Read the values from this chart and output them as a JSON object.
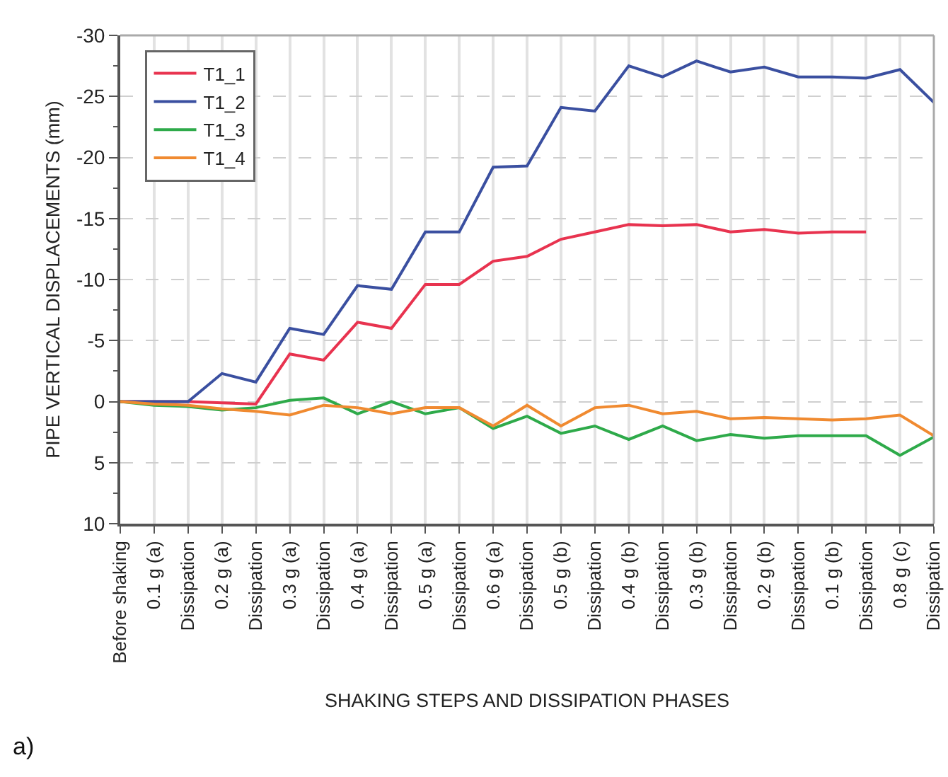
{
  "chart_data": {
    "type": "line",
    "xlabel": "SHAKING STEPS AND DISSIPATION PHASES",
    "ylabel": "PIPE VERTICAL DISPLACEMENTS (mm)",
    "categories": [
      "Before shaking",
      "0.1 g (a)",
      "Dissipation",
      "0.2 g (a)",
      "Dissipation",
      "0.3 g (a)",
      "Dissipation",
      "0.4 g (a)",
      "Dissipation",
      "0.5 g (a)",
      "Dissipation",
      "0.6 g (a)",
      "Dissipation",
      "0.5 g (b)",
      "Dissipation",
      "0.4 g (b)",
      "Dissipation",
      "0.3 g (b)",
      "Dissipation",
      "0.2 g (b)",
      "Dissipation",
      "0.1 g (b)",
      "Dissipation",
      "0.8 g (c)",
      "Dissipation"
    ],
    "series": [
      {
        "name": "T1_1",
        "color": "#e8334f",
        "values": [
          0,
          0,
          0,
          0.1,
          0.2,
          -3.9,
          -3.4,
          -6.5,
          -6.0,
          -9.6,
          -9.6,
          -11.5,
          -11.9,
          -13.3,
          -13.9,
          -14.5,
          -14.4,
          -14.5,
          -13.9,
          -14.1,
          -13.8,
          -13.9,
          -13.9,
          null,
          null
        ]
      },
      {
        "name": "T1_2",
        "color": "#3a4fa0",
        "values": [
          0,
          0,
          0,
          -2.3,
          -1.6,
          -6.0,
          -5.5,
          -9.5,
          -9.2,
          -13.9,
          -13.9,
          -19.2,
          -19.3,
          -24.1,
          -23.8,
          -27.5,
          -26.6,
          -27.9,
          -27.0,
          -27.4,
          -26.6,
          -26.6,
          -26.5,
          -27.2,
          -24.5
        ]
      },
      {
        "name": "T1_3",
        "color": "#2eaa4a",
        "values": [
          0,
          0.3,
          0.4,
          0.7,
          0.5,
          -0.1,
          -0.3,
          1.0,
          0,
          1.0,
          0.5,
          2.2,
          1.2,
          2.6,
          2.0,
          3.1,
          2.0,
          3.2,
          2.7,
          3.0,
          2.8,
          2.8,
          2.8,
          4.4,
          2.9
        ]
      },
      {
        "name": "T1_4",
        "color": "#f08a30",
        "values": [
          0,
          0.2,
          0.3,
          0.6,
          0.8,
          1.1,
          0.3,
          0.5,
          1.0,
          0.5,
          0.5,
          2.0,
          0.3,
          2.0,
          0.5,
          0.3,
          1.0,
          0.8,
          1.4,
          1.3,
          1.4,
          1.5,
          1.4,
          1.1,
          2.8
        ]
      }
    ],
    "ylim": [
      10,
      -30
    ],
    "yticks": [
      -30,
      -25,
      -20,
      -15,
      -10,
      -5,
      0,
      5,
      10
    ],
    "grid": true,
    "legend": "top left",
    "marker": "none",
    "line_style": "solid",
    "annotations": [
      "a)"
    ]
  }
}
